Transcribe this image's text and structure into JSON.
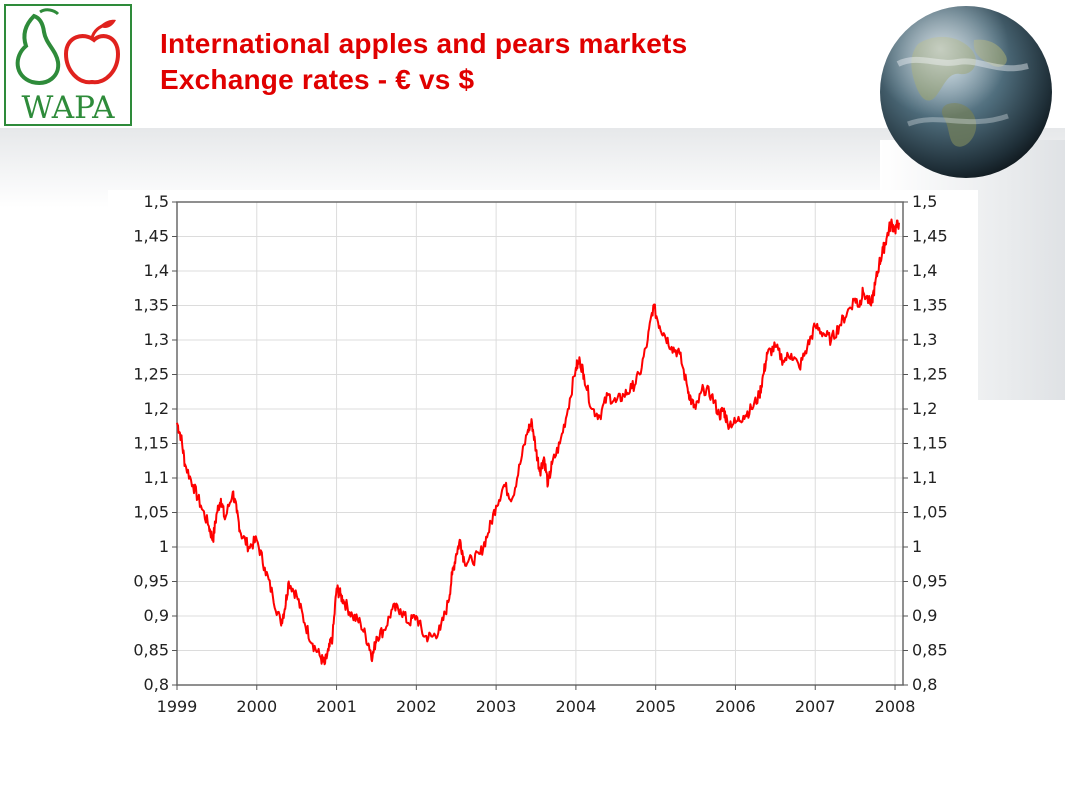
{
  "header": {
    "title_line1": "International apples and pears markets",
    "title_line2": "Exchange rates - € vs $",
    "logo_text": "WAPA"
  },
  "colors": {
    "title": "#e00000",
    "series": "#ff0000",
    "logo_green": "#2e8b3a",
    "logo_red": "#e0221e"
  },
  "chart_data": {
    "type": "line",
    "title": "",
    "xlabel": "",
    "ylabel": "",
    "xlim": [
      1999.0,
      2008.1
    ],
    "ylim": [
      0.8,
      1.5
    ],
    "grid": true,
    "y_axis_both_sides": true,
    "x_ticks": [
      "1999",
      "2000",
      "2001",
      "2002",
      "2003",
      "2004",
      "2005",
      "2006",
      "2007",
      "2008"
    ],
    "y_ticks": [
      "0,8",
      "0,85",
      "0,9",
      "0,95",
      "1",
      "1,05",
      "1,1",
      "1,15",
      "1,2",
      "1,25",
      "1,3",
      "1,35",
      "1,4",
      "1,45",
      "1,5"
    ],
    "series": [
      {
        "name": "",
        "x": [
          1999.0,
          1999.05,
          1999.1,
          1999.2,
          1999.3,
          1999.4,
          1999.45,
          1999.5,
          1999.55,
          1999.6,
          1999.7,
          1999.75,
          1999.8,
          1999.9,
          2000.0,
          2000.1,
          2000.2,
          2000.3,
          2000.35,
          2000.4,
          2000.5,
          2000.6,
          2000.7,
          2000.8,
          2000.85,
          2000.9,
          2000.95,
          2001.0,
          2001.05,
          2001.1,
          2001.2,
          2001.3,
          2001.4,
          2001.45,
          2001.5,
          2001.6,
          2001.7,
          2001.8,
          2001.9,
          2002.0,
          2002.1,
          2002.2,
          2002.3,
          2002.4,
          2002.45,
          2002.5,
          2002.55,
          2002.6,
          2002.7,
          2002.8,
          2002.9,
          2003.0,
          2003.1,
          2003.2,
          2003.3,
          2003.4,
          2003.45,
          2003.5,
          2003.55,
          2003.6,
          2003.65,
          2003.7,
          2003.8,
          2003.9,
          2004.0,
          2004.05,
          2004.1,
          2004.2,
          2004.3,
          2004.4,
          2004.5,
          2004.6,
          2004.7,
          2004.8,
          2004.9,
          2004.97,
          2005.05,
          2005.1,
          2005.2,
          2005.3,
          2005.4,
          2005.45,
          2005.5,
          2005.6,
          2005.7,
          2005.8,
          2005.85,
          2005.9,
          2006.0,
          2006.1,
          2006.2,
          2006.3,
          2006.35,
          2006.4,
          2006.5,
          2006.6,
          2006.7,
          2006.8,
          2006.9,
          2007.0,
          2007.1,
          2007.2,
          2007.3,
          2007.4,
          2007.5,
          2007.55,
          2007.6,
          2007.7,
          2007.75,
          2007.8,
          2007.85,
          2007.9,
          2007.95,
          2008.0,
          2008.05
        ],
        "y": [
          1.18,
          1.16,
          1.12,
          1.09,
          1.06,
          1.03,
          1.01,
          1.05,
          1.07,
          1.04,
          1.08,
          1.05,
          1.02,
          1.0,
          1.01,
          0.97,
          0.93,
          0.89,
          0.91,
          0.95,
          0.93,
          0.89,
          0.86,
          0.84,
          0.83,
          0.85,
          0.87,
          0.94,
          0.93,
          0.92,
          0.9,
          0.89,
          0.86,
          0.84,
          0.87,
          0.88,
          0.91,
          0.91,
          0.89,
          0.9,
          0.87,
          0.87,
          0.88,
          0.92,
          0.96,
          0.99,
          1.01,
          0.98,
          0.98,
          0.99,
          1.02,
          1.06,
          1.09,
          1.07,
          1.12,
          1.17,
          1.18,
          1.14,
          1.11,
          1.13,
          1.09,
          1.12,
          1.15,
          1.2,
          1.26,
          1.27,
          1.25,
          1.2,
          1.19,
          1.22,
          1.21,
          1.22,
          1.23,
          1.25,
          1.3,
          1.35,
          1.32,
          1.31,
          1.29,
          1.28,
          1.23,
          1.21,
          1.2,
          1.23,
          1.22,
          1.19,
          1.2,
          1.18,
          1.18,
          1.19,
          1.2,
          1.22,
          1.25,
          1.28,
          1.29,
          1.27,
          1.28,
          1.26,
          1.29,
          1.32,
          1.31,
          1.3,
          1.32,
          1.34,
          1.36,
          1.35,
          1.37,
          1.35,
          1.38,
          1.41,
          1.43,
          1.45,
          1.47,
          1.46,
          1.47
        ]
      }
    ]
  }
}
